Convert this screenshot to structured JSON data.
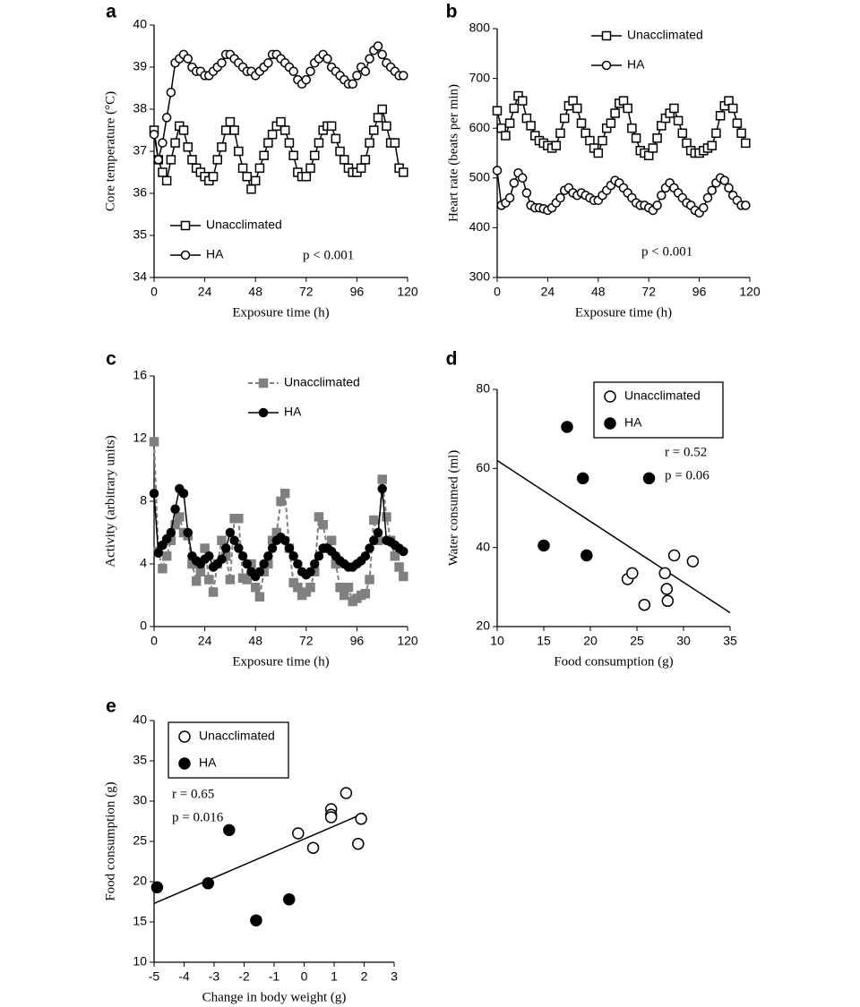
{
  "chart_data": [
    {
      "type": "line",
      "label": "a",
      "xlabel": "Exposure time (h)",
      "ylabel": "Core temperature (°C)",
      "xlim": [
        0,
        120
      ],
      "xticks": [
        0,
        24,
        48,
        72,
        96,
        120
      ],
      "ylim": [
        34,
        40
      ],
      "yticks": [
        34,
        35,
        36,
        37,
        38,
        39,
        40
      ],
      "legend": "lower-left",
      "annotations": [
        "p < 0.001"
      ],
      "x": [
        0,
        2,
        4,
        6,
        8,
        10,
        12,
        14,
        16,
        18,
        20,
        22,
        24,
        26,
        28,
        30,
        32,
        34,
        36,
        38,
        40,
        42,
        44,
        46,
        48,
        50,
        52,
        54,
        56,
        58,
        60,
        62,
        64,
        66,
        68,
        70,
        72,
        74,
        76,
        78,
        80,
        82,
        84,
        86,
        88,
        90,
        92,
        94,
        96,
        98,
        100,
        102,
        104,
        106,
        108,
        110,
        112,
        114,
        116,
        118
      ],
      "series": [
        {
          "name": "Unacclimated",
          "marker": "square",
          "filled": false,
          "dashed": false,
          "color": "#000000",
          "values": [
            37.5,
            36.8,
            36.5,
            36.3,
            36.8,
            37.2,
            37.6,
            37.5,
            37.1,
            36.8,
            36.6,
            36.5,
            36.4,
            36.3,
            36.4,
            36.8,
            37.1,
            37.5,
            37.7,
            37.5,
            37.0,
            36.6,
            36.4,
            36.1,
            36.3,
            36.6,
            36.9,
            37.2,
            37.4,
            37.6,
            37.7,
            37.5,
            37.2,
            36.9,
            36.5,
            36.4,
            36.4,
            36.6,
            36.9,
            37.2,
            37.5,
            37.6,
            37.6,
            37.3,
            37.0,
            36.8,
            36.6,
            36.5,
            36.5,
            36.6,
            36.8,
            37.2,
            37.5,
            37.8,
            38.0,
            37.6,
            37.2,
            37.2,
            36.6,
            36.5
          ]
        },
        {
          "name": "HA",
          "marker": "circle",
          "filled": false,
          "dashed": false,
          "color": "#000000",
          "values": [
            37.4,
            36.8,
            37.2,
            37.8,
            38.4,
            39.1,
            39.2,
            39.3,
            39.2,
            39.0,
            38.9,
            38.9,
            38.8,
            38.8,
            38.9,
            39.0,
            39.1,
            39.3,
            39.3,
            39.2,
            39.1,
            39.0,
            38.9,
            38.9,
            38.8,
            38.9,
            39.0,
            39.1,
            39.3,
            39.3,
            39.2,
            39.1,
            39.0,
            38.9,
            38.7,
            38.6,
            38.7,
            38.9,
            39.1,
            39.2,
            39.3,
            39.2,
            39.0,
            38.9,
            38.8,
            38.7,
            38.6,
            38.6,
            38.8,
            39.0,
            38.9,
            39.2,
            39.4,
            39.5,
            39.3,
            39.1,
            39.0,
            38.9,
            38.8,
            38.8
          ]
        }
      ]
    },
    {
      "type": "line",
      "label": "b",
      "xlabel": "Exposure time (h)",
      "ylabel": "Heart rate (beats per min)",
      "xlim": [
        0,
        120
      ],
      "xticks": [
        0,
        24,
        48,
        72,
        96,
        120
      ],
      "ylim": [
        300,
        800
      ],
      "yticks": [
        300,
        400,
        500,
        600,
        700,
        800
      ],
      "legend": "top",
      "annotations": [
        "p < 0.001"
      ],
      "x": [
        0,
        2,
        4,
        6,
        8,
        10,
        12,
        14,
        16,
        18,
        20,
        22,
        24,
        26,
        28,
        30,
        32,
        34,
        36,
        38,
        40,
        42,
        44,
        46,
        48,
        50,
        52,
        54,
        56,
        58,
        60,
        62,
        64,
        66,
        68,
        70,
        72,
        74,
        76,
        78,
        80,
        82,
        84,
        86,
        88,
        90,
        92,
        94,
        96,
        98,
        100,
        102,
        104,
        106,
        108,
        110,
        112,
        114,
        116,
        118
      ],
      "series": [
        {
          "name": "Unacclimated",
          "marker": "square",
          "filled": false,
          "dashed": false,
          "color": "#000000",
          "values": [
            635,
            600,
            585,
            610,
            640,
            665,
            655,
            620,
            605,
            585,
            575,
            570,
            565,
            560,
            565,
            590,
            620,
            645,
            655,
            640,
            610,
            590,
            575,
            560,
            550,
            575,
            600,
            610,
            630,
            650,
            655,
            640,
            600,
            580,
            555,
            550,
            545,
            560,
            580,
            605,
            620,
            630,
            640,
            615,
            590,
            570,
            555,
            550,
            550,
            555,
            560,
            565,
            590,
            625,
            645,
            655,
            640,
            610,
            590,
            570
          ]
        },
        {
          "name": "HA",
          "marker": "circle",
          "filled": false,
          "dashed": false,
          "color": "#000000",
          "values": [
            515,
            445,
            450,
            460,
            490,
            510,
            500,
            470,
            445,
            440,
            440,
            438,
            435,
            440,
            450,
            460,
            475,
            480,
            470,
            465,
            470,
            465,
            460,
            455,
            455,
            465,
            475,
            485,
            495,
            490,
            480,
            470,
            460,
            450,
            445,
            445,
            440,
            435,
            445,
            465,
            480,
            490,
            480,
            470,
            460,
            450,
            445,
            435,
            430,
            440,
            460,
            475,
            490,
            500,
            495,
            480,
            465,
            455,
            445,
            445
          ]
        }
      ]
    },
    {
      "type": "line",
      "label": "c",
      "xlabel": "Exposure time (h)",
      "ylabel": "Activity (arbitrary units)",
      "xlim": [
        0,
        120
      ],
      "xticks": [
        0,
        24,
        48,
        72,
        96,
        120
      ],
      "ylim": [
        0,
        16
      ],
      "yticks": [
        0,
        4,
        8,
        12,
        16
      ],
      "legend": "top",
      "annotations": [],
      "x": [
        0,
        2,
        4,
        6,
        8,
        10,
        12,
        14,
        16,
        18,
        20,
        22,
        24,
        26,
        28,
        30,
        32,
        34,
        36,
        38,
        40,
        42,
        44,
        46,
        48,
        50,
        52,
        54,
        56,
        58,
        60,
        62,
        64,
        66,
        68,
        70,
        72,
        74,
        76,
        78,
        80,
        82,
        84,
        86,
        88,
        90,
        92,
        94,
        96,
        98,
        100,
        102,
        104,
        106,
        108,
        110,
        112,
        114,
        116,
        118
      ],
      "series": [
        {
          "name": "Unacclimated",
          "marker": "square",
          "filled": true,
          "dashed": true,
          "color": "#808080",
          "values": [
            11.8,
            4.8,
            3.7,
            4.5,
            5.5,
            6.5,
            7.0,
            6.0,
            5.8,
            4.0,
            2.9,
            3.5,
            5.0,
            3.0,
            2.2,
            4.0,
            5.5,
            4.5,
            3.0,
            6.9,
            6.9,
            3.1,
            3.0,
            4.0,
            2.5,
            1.9,
            3.5,
            4.0,
            5.5,
            6.0,
            8.0,
            8.5,
            5.0,
            2.8,
            2.5,
            2.0,
            2.2,
            2.5,
            3.5,
            7.0,
            6.5,
            5.0,
            5.5,
            4.0,
            2.5,
            2.0,
            2.5,
            1.6,
            1.8,
            2.0,
            2.1,
            3.0,
            6.8,
            5.5,
            9.4,
            7.0,
            5.5,
            4.5,
            3.8,
            3.2
          ]
        },
        {
          "name": "HA",
          "marker": "circle",
          "filled": true,
          "dashed": false,
          "color": "#000000",
          "values": [
            8.5,
            4.7,
            5.2,
            5.6,
            6.0,
            7.5,
            8.8,
            8.5,
            6.0,
            4.5,
            4.2,
            4.0,
            4.3,
            4.5,
            3.8,
            4.0,
            4.3,
            5.0,
            6.0,
            5.5,
            5.0,
            4.5,
            4.0,
            3.5,
            3.2,
            3.5,
            4.0,
            4.5,
            5.0,
            5.5,
            5.7,
            5.5,
            5.0,
            4.5,
            4.0,
            3.5,
            3.3,
            3.5,
            4.0,
            4.5,
            5.0,
            5.0,
            4.8,
            4.5,
            4.2,
            4.0,
            3.8,
            3.8,
            4.0,
            4.2,
            4.5,
            5.0,
            5.5,
            6.0,
            8.8,
            5.5,
            5.4,
            5.2,
            5.0,
            4.8
          ]
        }
      ]
    },
    {
      "type": "scatter",
      "label": "d",
      "xlabel": "Food consumption (g)",
      "ylabel": "Water consumed (ml)",
      "xlim": [
        10,
        35
      ],
      "xticks": [
        10,
        15,
        20,
        25,
        30,
        35
      ],
      "ylim": [
        20,
        80
      ],
      "yticks": [
        20,
        40,
        60,
        80
      ],
      "legend": "upper-right",
      "annotations": [
        "r = 0.52",
        "p = 0.06"
      ],
      "fit": {
        "x": [
          10,
          35
        ],
        "y": [
          62,
          23.5
        ]
      },
      "series": [
        {
          "name": "Unacclimated",
          "marker": "circle",
          "filled": false,
          "color": "#000000",
          "x": [
            24,
            24.5,
            25.8,
            28,
            28.2,
            28.3,
            29,
            31
          ],
          "y": [
            32,
            33.5,
            25.5,
            33.5,
            29.5,
            26.5,
            38,
            36.5
          ]
        },
        {
          "name": "HA",
          "marker": "circle",
          "filled": true,
          "color": "#000000",
          "x": [
            17.5,
            19.2,
            26.3,
            15,
            19.6
          ],
          "y": [
            70.5,
            57.5,
            57.5,
            40.5,
            38
          ]
        }
      ]
    },
    {
      "type": "scatter",
      "label": "e",
      "xlabel": "Change in body weight (g)",
      "ylabel": "Food consumption (g)",
      "xlim": [
        -5,
        3
      ],
      "xticks": [
        -5,
        -4,
        -3,
        -2,
        -1,
        0,
        1,
        2,
        3
      ],
      "ylim": [
        10,
        40
      ],
      "yticks": [
        10,
        15,
        20,
        25,
        30,
        35,
        40
      ],
      "legend": "upper-left",
      "annotations": [
        "r = 0.65",
        "p = 0.016"
      ],
      "fit": {
        "x": [
          -5,
          2
        ],
        "y": [
          17.3,
          28.5
        ]
      },
      "series": [
        {
          "name": "Unacclimated",
          "marker": "circle",
          "filled": false,
          "color": "#000000",
          "x": [
            -0.2,
            0.3,
            0.9,
            0.9,
            0.9,
            1.4,
            1.8,
            1.9
          ],
          "y": [
            26,
            24.2,
            29,
            28.3,
            28,
            31,
            24.7,
            27.8
          ]
        },
        {
          "name": "HA",
          "marker": "circle",
          "filled": true,
          "color": "#000000",
          "x": [
            -4.9,
            -3.2,
            -2.5,
            -1.6,
            -0.5
          ],
          "y": [
            19.3,
            19.8,
            26.4,
            15.2,
            17.8
          ]
        }
      ]
    }
  ]
}
